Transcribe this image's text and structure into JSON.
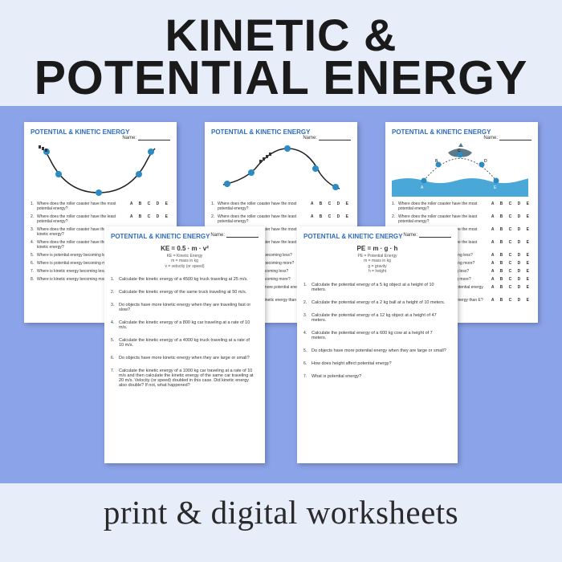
{
  "header": {
    "line1": "KINETIC &",
    "line2": "POTENTIAL ENERGY"
  },
  "footer": "print & digital worksheets",
  "common": {
    "sheet_title": "POTENTIAL & KINETIC ENERGY",
    "name_label": "Name:",
    "options": "A B C D E"
  },
  "diagram_questions": [
    "Where does the roller coaster have the most potential energy?",
    "Where does the roller coaster have the least potential energy?",
    "Where does the roller coaster have the most kinetic energy?",
    "Where does the roller coaster have the least kinetic energy?",
    "Where is potential energy becoming less?",
    "Where is potential energy becoming more?",
    "Where is kinetic energy becoming less?",
    "Where is kinetic energy becoming more?",
    "Which location which has more potential energy than B",
    "Which location has more kinetic energy than E?"
  ],
  "ke_sheet": {
    "formula": "KE = 0.5 · m · v²",
    "sub1": "KE = Kinetic Energy",
    "sub2": "m = mass in kg",
    "sub3": "v = velocity (or speed)",
    "questions": [
      "Calculate the kinetic energy of a 4500 kg truck traveling at 25 m/s.",
      "Calculate the kinetic energy of the same truck traveling at 50 m/s.",
      "Do objects have more kinetic energy when they are traveling fast or slow?",
      "Calculate the kinetic energy of a 800 kg car traveling at a rate of 10 m/s.",
      "Calculate the kinetic energy of a 4000 kg truck traveling at a rate of 10 m/s.",
      "Do objects have more kinetic energy when they are large or small?",
      "Calculate the kinetic energy of a 1000 kg car traveling at a rate of 10 m/s and then calculate the kinetic energy of the same car traveling at 20 m/s. Velocity (or speed) doubled in this case. Did kinetic energy also double? If not, what happened?"
    ]
  },
  "pe_sheet": {
    "formula": "PE = m · g · h",
    "sub1": "PE = Potential Energy",
    "sub2": "m = mass in kg",
    "sub3": "g = gravity",
    "sub4": "h = height",
    "questions": [
      "Calculate the potential energy of a 5 kg object at a height of 10 meters.",
      "Calculate the potential energy of a 2 kg ball at a height of 10 meters.",
      "Calculate the potential energy of a 12 kg object at a height of 47 meters.",
      "Calculate the potential energy of a 600 kg cow at a height of 7 meters.",
      "Do objects have more potential energy when they are large or small?",
      "How does height affect potential energy?",
      "What is potential energy?"
    ]
  },
  "colors": {
    "page_bg": "#e8edfa",
    "mid_bg": "#8ba3e8",
    "sheet_title": "#2b6cc4",
    "dot": "#2b8cc4",
    "water": "#4aa8d8",
    "dolphin": "#5a7a8a"
  }
}
